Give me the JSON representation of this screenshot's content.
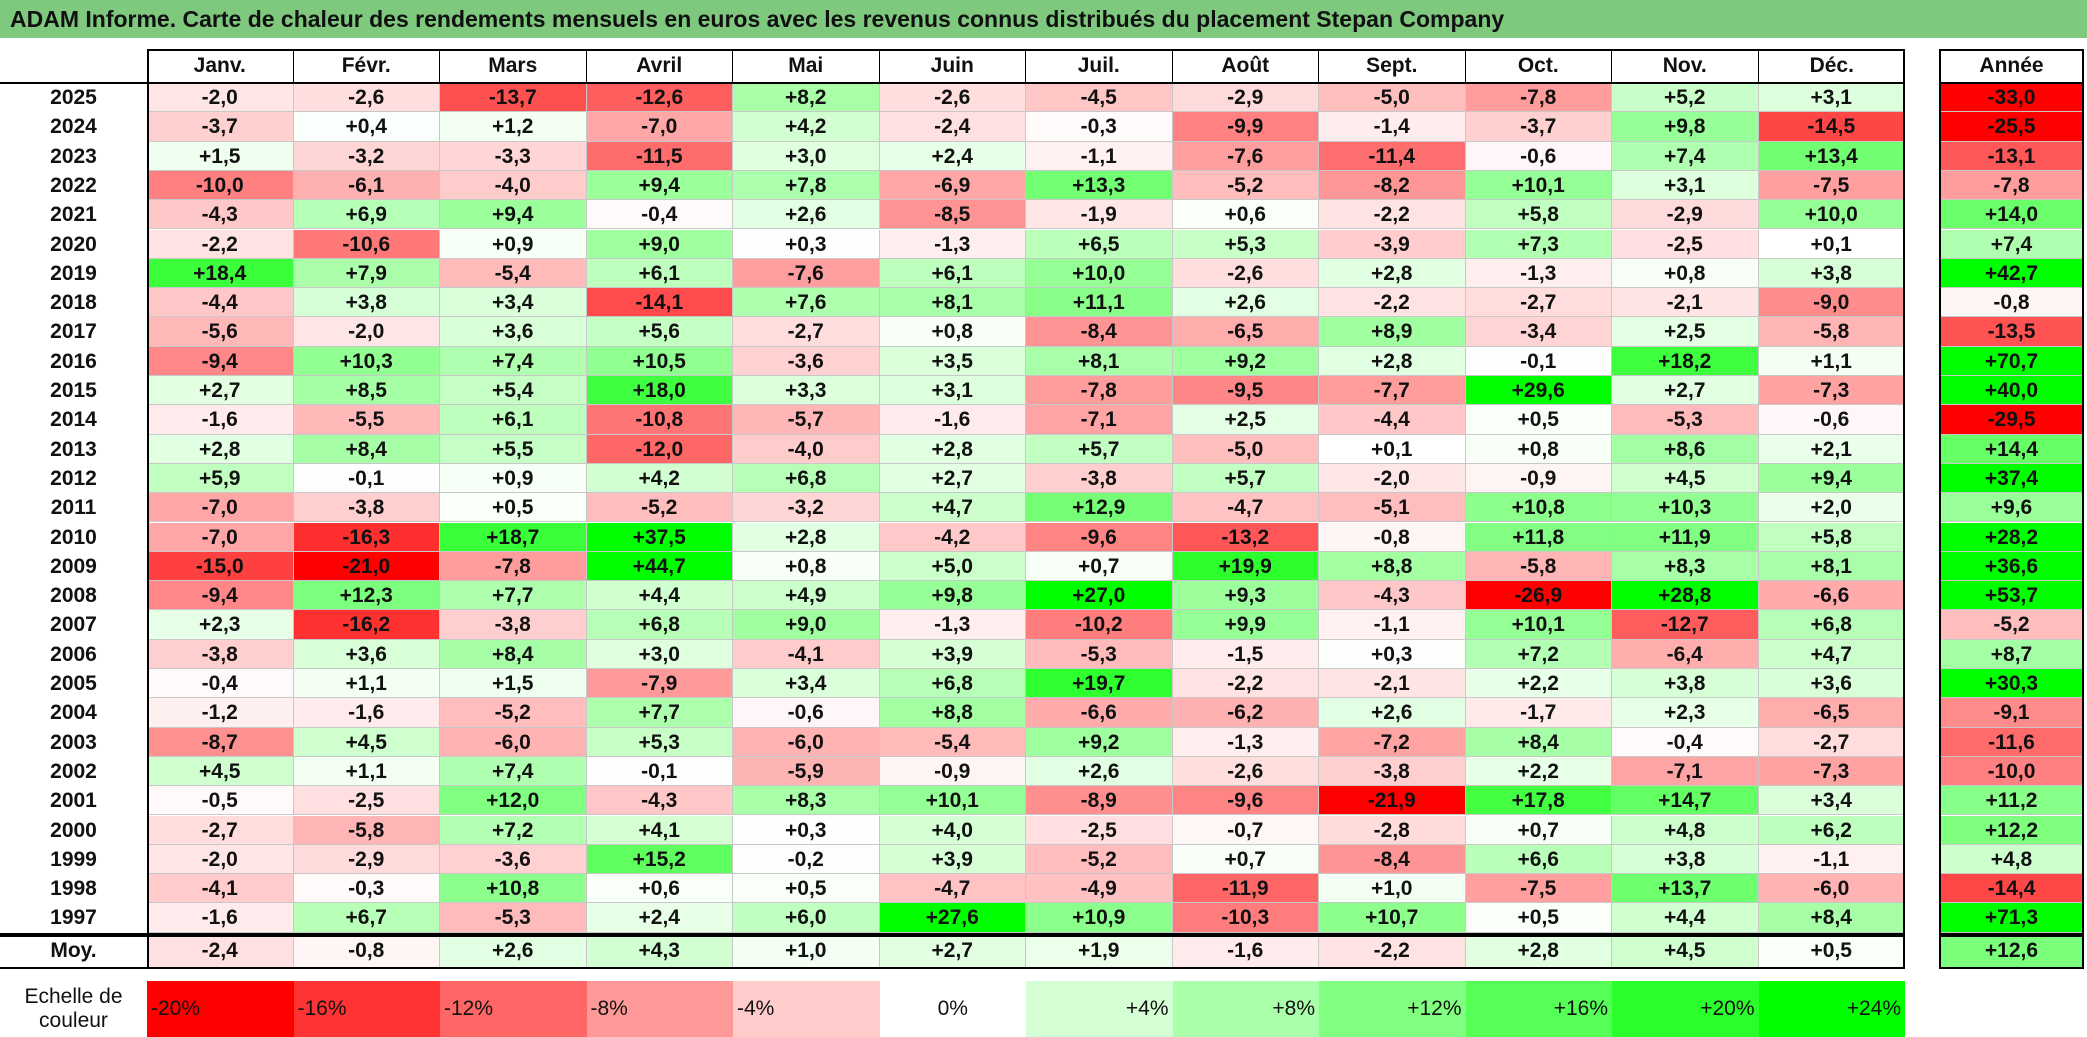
{
  "title": "ADAM Informe. Carte de chaleur des rendements mensuels en euros avec les revenus connus distribués du placement Stepan Company",
  "chart_data": {
    "type": "heatmap",
    "columns": [
      "Janv.",
      "Févr.",
      "Mars",
      "Avril",
      "Mai",
      "Juin",
      "Juil.",
      "Août",
      "Sept.",
      "Oct.",
      "Nov.",
      "Déc."
    ],
    "annual_header": "Année",
    "rows": [
      {
        "year": "2025",
        "values": [
          -2.0,
          -2.6,
          -13.7,
          -12.6,
          8.2,
          -2.6,
          -4.5,
          -2.9,
          -5.0,
          -7.8,
          5.2,
          3.1
        ],
        "annual": -33.0
      },
      {
        "year": "2024",
        "values": [
          -3.7,
          0.4,
          1.2,
          -7.0,
          4.2,
          -2.4,
          -0.3,
          -9.9,
          -1.4,
          -3.7,
          9.8,
          -14.5
        ],
        "annual": -25.5
      },
      {
        "year": "2023",
        "values": [
          1.5,
          -3.2,
          -3.3,
          -11.5,
          3.0,
          2.4,
          -1.1,
          -7.6,
          -11.4,
          -0.6,
          7.4,
          13.4
        ],
        "annual": -13.1
      },
      {
        "year": "2022",
        "values": [
          -10.0,
          -6.1,
          -4.0,
          9.4,
          7.8,
          -6.9,
          13.3,
          -5.2,
          -8.2,
          10.1,
          3.1,
          -7.5
        ],
        "annual": -7.8
      },
      {
        "year": "2021",
        "values": [
          -4.3,
          6.9,
          9.4,
          -0.4,
          2.6,
          -8.5,
          -1.9,
          0.6,
          -2.2,
          5.8,
          -2.9,
          10.0
        ],
        "annual": 14.0
      },
      {
        "year": "2020",
        "values": [
          -2.2,
          -10.6,
          0.9,
          9.0,
          0.3,
          -1.3,
          6.5,
          5.3,
          -3.9,
          7.3,
          -2.5,
          0.1
        ],
        "annual": 7.4
      },
      {
        "year": "2019",
        "values": [
          18.4,
          7.9,
          -5.4,
          6.1,
          -7.6,
          6.1,
          10.0,
          -2.6,
          2.8,
          -1.3,
          0.8,
          3.8
        ],
        "annual": 42.7
      },
      {
        "year": "2018",
        "values": [
          -4.4,
          3.8,
          3.4,
          -14.1,
          7.6,
          8.1,
          11.1,
          2.6,
          -2.2,
          -2.7,
          -2.1,
          -9.0
        ],
        "annual": -0.8
      },
      {
        "year": "2017",
        "values": [
          -5.6,
          -2.0,
          3.6,
          5.6,
          -2.7,
          0.8,
          -8.4,
          -6.5,
          8.9,
          -3.4,
          2.5,
          -5.8
        ],
        "annual": -13.5
      },
      {
        "year": "2016",
        "values": [
          -9.4,
          10.3,
          7.4,
          10.5,
          -3.6,
          3.5,
          8.1,
          9.2,
          2.8,
          -0.1,
          18.2,
          1.1
        ],
        "annual": 70.7
      },
      {
        "year": "2015",
        "values": [
          2.7,
          8.5,
          5.4,
          18.0,
          3.3,
          3.1,
          -7.8,
          -9.5,
          -7.7,
          29.6,
          2.7,
          -7.3
        ],
        "annual": 40.0
      },
      {
        "year": "2014",
        "values": [
          -1.6,
          -5.5,
          6.1,
          -10.8,
          -5.7,
          -1.6,
          -7.1,
          2.5,
          -4.4,
          0.5,
          -5.3,
          -0.6
        ],
        "annual": -29.5
      },
      {
        "year": "2013",
        "values": [
          2.8,
          8.4,
          5.5,
          -12.0,
          -4.0,
          2.8,
          5.7,
          -5.0,
          0.1,
          0.8,
          8.6,
          2.1
        ],
        "annual": 14.4
      },
      {
        "year": "2012",
        "values": [
          5.9,
          -0.1,
          0.9,
          4.2,
          6.8,
          2.7,
          -3.8,
          5.7,
          -2.0,
          -0.9,
          4.5,
          9.4
        ],
        "annual": 37.4
      },
      {
        "year": "2011",
        "values": [
          -7.0,
          -3.8,
          0.5,
          -5.2,
          -3.2,
          4.7,
          12.9,
          -4.7,
          -5.1,
          10.8,
          10.3,
          2.0
        ],
        "annual": 9.6
      },
      {
        "year": "2010",
        "values": [
          -7.0,
          -16.3,
          18.7,
          37.5,
          2.8,
          -4.2,
          -9.6,
          -13.2,
          -0.8,
          11.8,
          11.9,
          5.8
        ],
        "annual": 28.2
      },
      {
        "year": "2009",
        "values": [
          -15.0,
          -21.0,
          -7.8,
          44.7,
          0.8,
          5.0,
          0.7,
          19.9,
          8.8,
          -5.8,
          8.3,
          8.1
        ],
        "annual": 36.6
      },
      {
        "year": "2008",
        "values": [
          -9.4,
          12.3,
          7.7,
          4.4,
          4.9,
          9.8,
          27.0,
          9.3,
          -4.3,
          -26.9,
          28.8,
          -6.6
        ],
        "annual": 53.7
      },
      {
        "year": "2007",
        "values": [
          2.3,
          -16.2,
          -3.8,
          6.8,
          9.0,
          -1.3,
          -10.2,
          9.9,
          -1.1,
          10.1,
          -12.7,
          6.8
        ],
        "annual": -5.2
      },
      {
        "year": "2006",
        "values": [
          -3.8,
          3.6,
          8.4,
          3.0,
          -4.1,
          3.9,
          -5.3,
          -1.5,
          0.3,
          7.2,
          -6.4,
          4.7
        ],
        "annual": 8.7
      },
      {
        "year": "2005",
        "values": [
          -0.4,
          1.1,
          1.5,
          -7.9,
          3.4,
          6.8,
          19.7,
          -2.2,
          -2.1,
          2.2,
          3.8,
          3.6
        ],
        "annual": 30.3
      },
      {
        "year": "2004",
        "values": [
          -1.2,
          -1.6,
          -5.2,
          7.7,
          -0.6,
          8.8,
          -6.6,
          -6.2,
          2.6,
          -1.7,
          2.3,
          -6.5
        ],
        "annual": -9.1
      },
      {
        "year": "2003",
        "values": [
          -8.7,
          4.5,
          -6.0,
          5.3,
          -6.0,
          -5.4,
          9.2,
          -1.3,
          -7.2,
          8.4,
          -0.4,
          -2.7
        ],
        "annual": -11.6
      },
      {
        "year": "2002",
        "values": [
          4.5,
          1.1,
          7.4,
          -0.1,
          -5.9,
          -0.9,
          2.6,
          -2.6,
          -3.8,
          2.2,
          -7.1,
          -7.3
        ],
        "annual": -10.0
      },
      {
        "year": "2001",
        "values": [
          -0.5,
          -2.5,
          12.0,
          -4.3,
          8.3,
          10.1,
          -8.9,
          -9.6,
          -21.9,
          17.8,
          14.7,
          3.4
        ],
        "annual": 11.2
      },
      {
        "year": "2000",
        "values": [
          -2.7,
          -5.8,
          7.2,
          4.1,
          0.3,
          4.0,
          -2.5,
          -0.7,
          -2.8,
          0.7,
          4.8,
          6.2
        ],
        "annual": 12.2
      },
      {
        "year": "1999",
        "values": [
          -2.0,
          -2.9,
          -3.6,
          15.2,
          -0.2,
          3.9,
          -5.2,
          0.7,
          -8.4,
          6.6,
          3.8,
          -1.1
        ],
        "annual": 4.8
      },
      {
        "year": "1998",
        "values": [
          -4.1,
          -0.3,
          10.8,
          0.6,
          0.5,
          -4.7,
          -4.9,
          -11.9,
          1.0,
          -7.5,
          13.7,
          -6.0
        ],
        "annual": -14.4
      },
      {
        "year": "1997",
        "values": [
          -1.6,
          6.7,
          -5.3,
          2.4,
          6.0,
          27.6,
          10.9,
          -10.3,
          10.7,
          0.5,
          4.4,
          8.4
        ],
        "annual": 71.3
      }
    ],
    "average": {
      "label": "Moy.",
      "values": [
        -2.4,
        -0.8,
        2.6,
        4.3,
        1.0,
        2.7,
        1.9,
        -1.6,
        -2.2,
        2.8,
        4.5,
        0.5
      ],
      "annual": 12.6
    },
    "legend": {
      "label": "Echelle de couleur",
      "stops": [
        {
          "text": "-20%",
          "value": -20
        },
        {
          "text": "-16%",
          "value": -16
        },
        {
          "text": "-12%",
          "value": -12
        },
        {
          "text": "-8%",
          "value": -8
        },
        {
          "text": "-4%",
          "value": -4
        },
        {
          "text": "0%",
          "value": 0
        },
        {
          "text": "+4%",
          "value": 4
        },
        {
          "text": "+8%",
          "value": 8
        },
        {
          "text": "+12%",
          "value": 12
        },
        {
          "text": "+16%",
          "value": 16
        },
        {
          "text": "+20%",
          "value": 20
        },
        {
          "text": "+24%",
          "value": 24
        }
      ]
    },
    "colors": {
      "negative": "#ff0000",
      "neutral": "#ffffff",
      "positive": "#00ff00",
      "title_bar": "#7fc97f"
    },
    "color_range": [
      -20,
      24
    ]
  }
}
